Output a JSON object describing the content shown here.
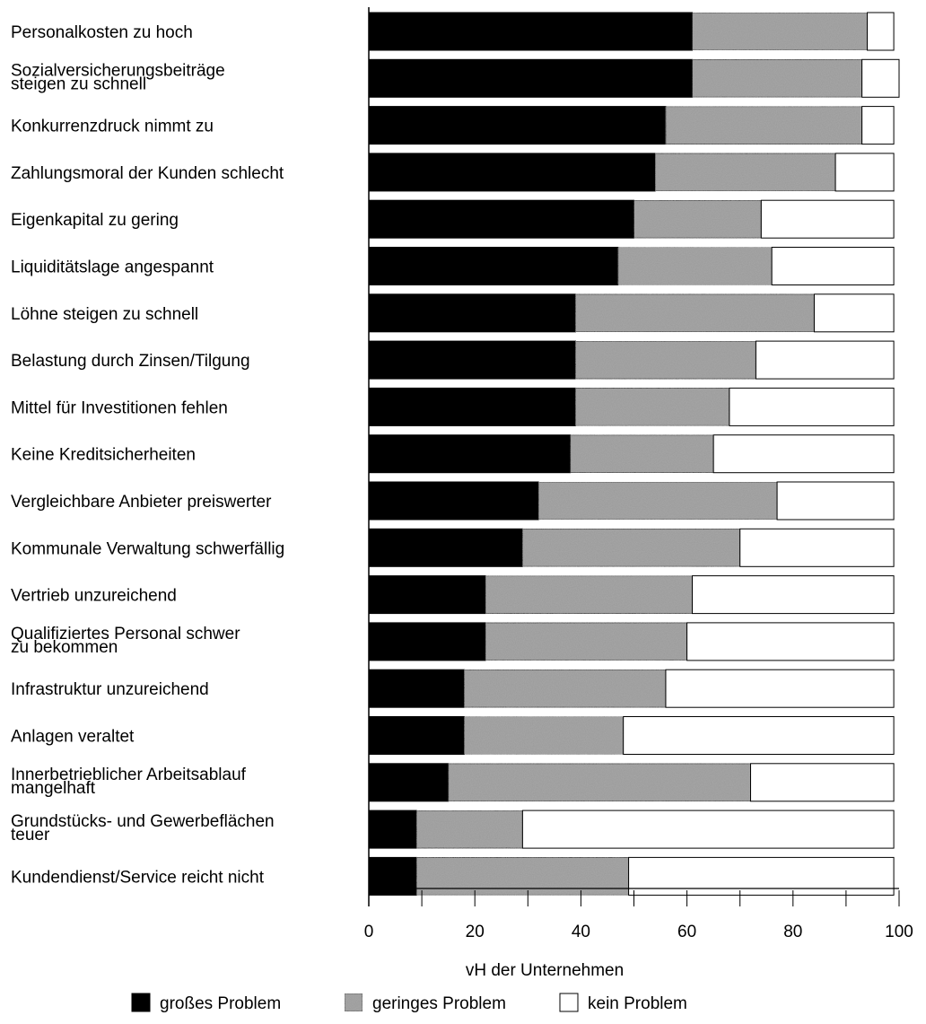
{
  "chart_data": {
    "type": "bar",
    "stacked": true,
    "orientation": "horizontal",
    "categories": [
      [
        "Personalkosten zu hoch"
      ],
      [
        "Sozialversicherungsbeiträge",
        "steigen zu schnell"
      ],
      [
        "Konkurrenzdruck nimmt zu"
      ],
      [
        "Zahlungsmoral der Kunden schlecht"
      ],
      [
        "Eigenkapital zu gering"
      ],
      [
        "Liquiditätslage angespannt"
      ],
      [
        "Löhne steigen zu schnell"
      ],
      [
        "Belastung durch Zinsen/Tilgung"
      ],
      [
        "Mittel für Investitionen fehlen"
      ],
      [
        "Keine Kreditsicherheiten"
      ],
      [
        "Vergleichbare Anbieter preiswerter"
      ],
      [
        "Kommunale Verwaltung schwerfällig"
      ],
      [
        "Vertrieb unzureichend"
      ],
      [
        "Qualifiziertes Personal schwer",
        "zu bekommen"
      ],
      [
        "Infrastruktur unzureichend"
      ],
      [
        "Anlagen veraltet"
      ],
      [
        "Innerbetrieblicher Arbeitsablauf",
        "mangelhaft"
      ],
      [
        "Grundstücks- und Gewerbeflächen",
        "teuer"
      ],
      [
        "Kundendienst/Service reicht nicht"
      ]
    ],
    "series": [
      {
        "name": "großes Problem",
        "color": "#000000",
        "values": [
          61,
          61,
          56,
          54,
          50,
          47,
          39,
          39,
          39,
          38,
          32,
          29,
          22,
          22,
          18,
          18,
          15,
          9,
          9
        ]
      },
      {
        "name": "geringes Problem",
        "color": "#9a9a9a",
        "values": [
          33,
          32,
          37,
          34,
          24,
          29,
          45,
          34,
          29,
          27,
          45,
          41,
          39,
          38,
          38,
          30,
          57,
          20,
          40
        ]
      },
      {
        "name": "kein Problem",
        "color": "#ffffff",
        "values": [
          5,
          7,
          6,
          11,
          25,
          23,
          15,
          26,
          31,
          34,
          22,
          29,
          38,
          39,
          43,
          51,
          27,
          70,
          50
        ]
      }
    ],
    "xlabel": "vH der Unternehmen",
    "ylabel": "",
    "xlim": [
      0,
      100
    ],
    "xticks": [
      0,
      20,
      40,
      60,
      80,
      100
    ],
    "legend_position": "bottom"
  }
}
